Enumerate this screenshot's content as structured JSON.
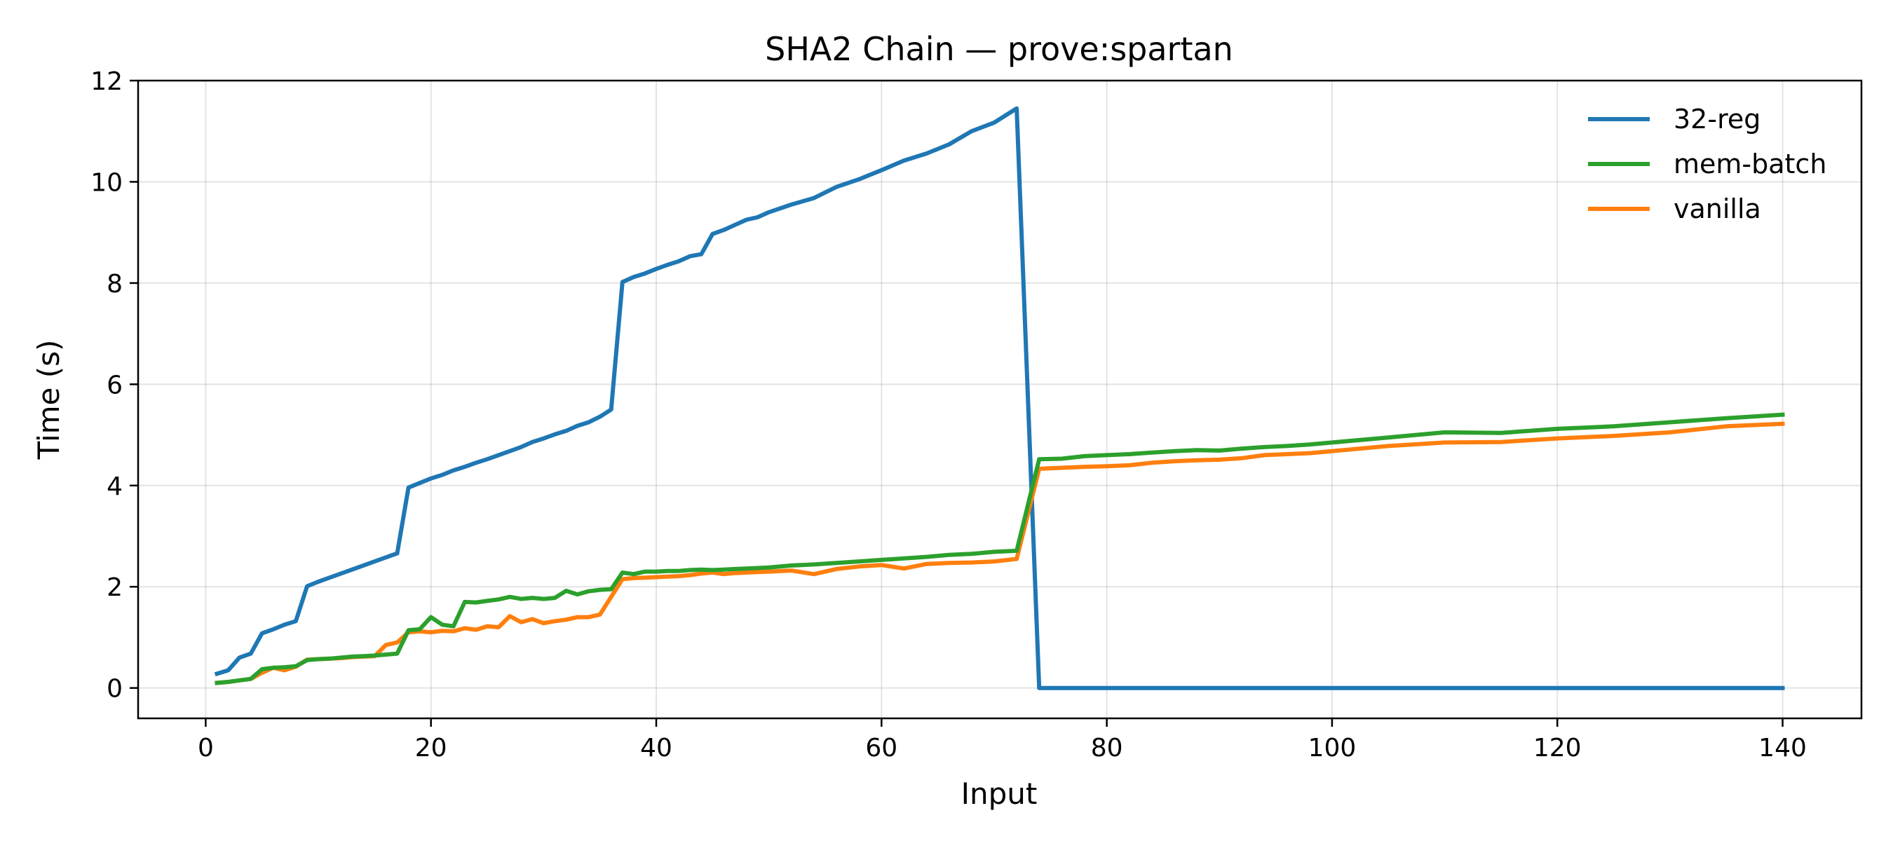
{
  "chart_data": {
    "type": "line",
    "title": "SHA2 Chain — prove:spartan",
    "xlabel": "Input",
    "ylabel": "Time (s)",
    "xlim": [
      -6,
      147
    ],
    "ylim": [
      -0.6,
      12
    ],
    "xticks": [
      0,
      20,
      40,
      60,
      80,
      100,
      120,
      140
    ],
    "yticks": [
      0,
      2,
      4,
      6,
      8,
      10,
      12
    ],
    "grid": true,
    "legend_position": "top-right",
    "series": [
      {
        "name": "32-reg",
        "color": "#1f77b4",
        "x": [
          1,
          2,
          3,
          4,
          5,
          6,
          7,
          8,
          9,
          10,
          11,
          12,
          13,
          14,
          15,
          16,
          17,
          18,
          19,
          20,
          21,
          22,
          23,
          24,
          25,
          26,
          27,
          28,
          29,
          30,
          31,
          32,
          33,
          34,
          35,
          36,
          37,
          38,
          39,
          40,
          41,
          42,
          43,
          44,
          45,
          46,
          47,
          48,
          49,
          50,
          52,
          54,
          56,
          58,
          60,
          62,
          64,
          66,
          68,
          70,
          72,
          74,
          76,
          78,
          80,
          82,
          84,
          86,
          88,
          90,
          92,
          94,
          96,
          98,
          100,
          105,
          110,
          115,
          120,
          125,
          130,
          135,
          140
        ],
        "y": [
          0.28,
          0.35,
          0.6,
          0.68,
          1.08,
          1.16,
          1.25,
          1.32,
          2.01,
          2.1,
          2.18,
          2.26,
          2.34,
          2.42,
          2.5,
          2.58,
          2.66,
          3.96,
          4.05,
          4.14,
          4.21,
          4.3,
          4.37,
          4.45,
          4.52,
          4.6,
          4.68,
          4.76,
          4.86,
          4.93,
          5.01,
          5.08,
          5.18,
          5.25,
          5.36,
          5.5,
          8.02,
          8.12,
          8.19,
          8.28,
          8.36,
          8.43,
          8.53,
          8.57,
          8.97,
          9.05,
          9.15,
          9.25,
          9.3,
          9.4,
          9.55,
          9.68,
          9.9,
          10.05,
          10.23,
          10.42,
          10.56,
          10.74,
          11.0,
          11.17,
          11.45,
          0.0,
          0.0,
          0.0,
          0.0,
          0.0,
          0.0,
          0.0,
          0.0,
          0.0,
          0.0,
          0.0,
          0.0,
          0.0,
          0.0,
          0.0,
          0.0,
          0.0,
          0.0,
          0.0,
          0.0,
          0.0,
          0.0
        ]
      },
      {
        "name": "mem-batch",
        "color": "#2ca02c",
        "x": [
          1,
          2,
          3,
          4,
          5,
          6,
          7,
          8,
          9,
          10,
          11,
          12,
          13,
          14,
          15,
          16,
          17,
          18,
          19,
          20,
          21,
          22,
          23,
          24,
          25,
          26,
          27,
          28,
          29,
          30,
          31,
          32,
          33,
          34,
          35,
          36,
          37,
          38,
          39,
          40,
          41,
          42,
          43,
          44,
          45,
          46,
          47,
          48,
          49,
          50,
          52,
          54,
          56,
          58,
          60,
          62,
          64,
          66,
          68,
          70,
          72,
          74,
          76,
          78,
          80,
          82,
          84,
          86,
          88,
          90,
          92,
          94,
          96,
          98,
          100,
          105,
          110,
          115,
          120,
          125,
          130,
          135,
          140
        ],
        "y": [
          0.1,
          0.12,
          0.15,
          0.18,
          0.37,
          0.4,
          0.41,
          0.43,
          0.55,
          0.57,
          0.58,
          0.6,
          0.62,
          0.63,
          0.64,
          0.66,
          0.68,
          1.14,
          1.16,
          1.4,
          1.25,
          1.22,
          1.7,
          1.69,
          1.72,
          1.75,
          1.8,
          1.76,
          1.78,
          1.76,
          1.78,
          1.92,
          1.85,
          1.91,
          1.94,
          1.95,
          2.28,
          2.25,
          2.3,
          2.3,
          2.31,
          2.31,
          2.33,
          2.34,
          2.33,
          2.34,
          2.35,
          2.36,
          2.37,
          2.38,
          2.42,
          2.44,
          2.47,
          2.5,
          2.53,
          2.56,
          2.59,
          2.63,
          2.65,
          2.69,
          2.71,
          4.52,
          4.53,
          4.58,
          4.6,
          4.62,
          4.65,
          4.68,
          4.7,
          4.69,
          4.73,
          4.76,
          4.78,
          4.81,
          4.85,
          4.95,
          5.05,
          5.04,
          5.12,
          5.17,
          5.25,
          5.33,
          5.4
        ]
      },
      {
        "name": "vanilla",
        "color": "#ff7f0e",
        "x": [
          1,
          2,
          3,
          4,
          5,
          6,
          7,
          8,
          9,
          10,
          11,
          12,
          13,
          14,
          15,
          16,
          17,
          18,
          19,
          20,
          21,
          22,
          23,
          24,
          25,
          26,
          27,
          28,
          29,
          30,
          31,
          32,
          33,
          34,
          35,
          36,
          37,
          38,
          39,
          40,
          41,
          42,
          43,
          44,
          45,
          46,
          47,
          48,
          49,
          50,
          52,
          54,
          56,
          58,
          60,
          62,
          64,
          66,
          68,
          70,
          72,
          74,
          76,
          78,
          80,
          82,
          84,
          86,
          88,
          90,
          92,
          94,
          96,
          98,
          100,
          105,
          110,
          115,
          120,
          125,
          130,
          135,
          140
        ],
        "y": [
          0.1,
          0.12,
          0.15,
          0.18,
          0.3,
          0.4,
          0.35,
          0.42,
          0.56,
          0.57,
          0.58,
          0.59,
          0.61,
          0.62,
          0.63,
          0.85,
          0.9,
          1.1,
          1.12,
          1.1,
          1.13,
          1.12,
          1.18,
          1.15,
          1.22,
          1.2,
          1.42,
          1.3,
          1.36,
          1.28,
          1.32,
          1.35,
          1.4,
          1.4,
          1.45,
          1.8,
          2.15,
          2.17,
          2.18,
          2.19,
          2.2,
          2.21,
          2.23,
          2.26,
          2.28,
          2.25,
          2.27,
          2.28,
          2.29,
          2.3,
          2.32,
          2.25,
          2.35,
          2.4,
          2.43,
          2.36,
          2.45,
          2.47,
          2.48,
          2.5,
          2.55,
          4.33,
          4.35,
          4.37,
          4.38,
          4.4,
          4.45,
          4.48,
          4.5,
          4.51,
          4.54,
          4.6,
          4.62,
          4.64,
          4.68,
          4.78,
          4.85,
          4.86,
          4.93,
          4.98,
          5.05,
          5.17,
          5.22
        ]
      }
    ]
  }
}
